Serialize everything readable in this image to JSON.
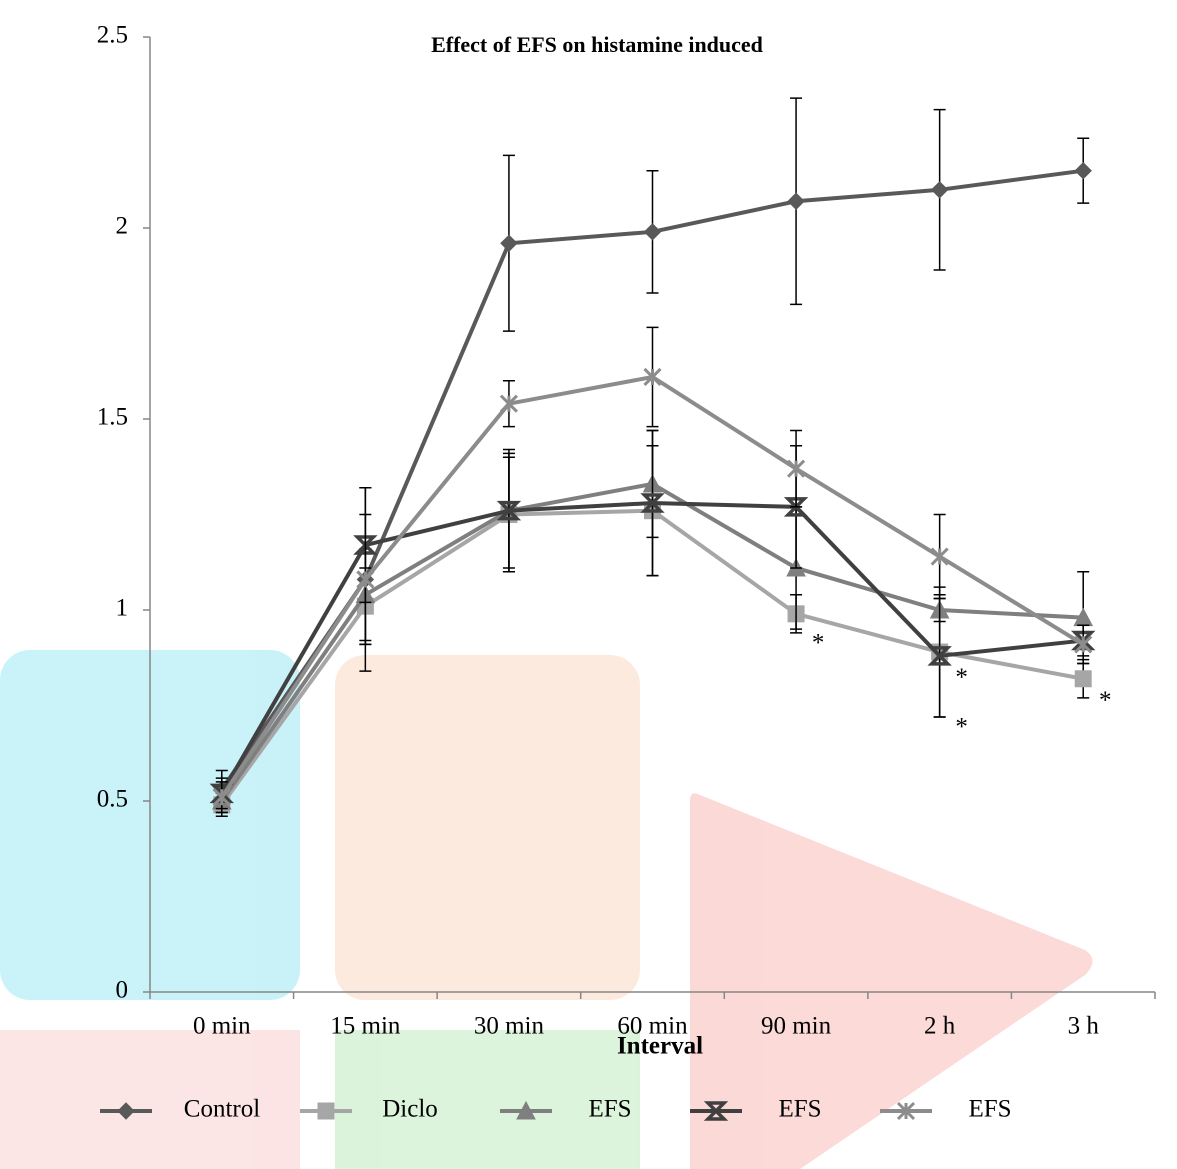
{
  "chart_data": {
    "type": "line",
    "title": "Effect of EFS on histamine induced",
    "x_label": "Interval",
    "categories": [
      "0 min",
      "15 min",
      "30 min",
      "60 min",
      "90 min",
      "2 h",
      "3 h"
    ],
    "series": [
      {
        "name": "Control",
        "color": "#595959",
        "marker": "diamond",
        "values": [
          0.53,
          1.08,
          1.96,
          1.99,
          2.07,
          2.1,
          2.15
        ],
        "errors": [
          0.05,
          0.24,
          0.23,
          0.16,
          0.27,
          0.21,
          0.085
        ]
      },
      {
        "name": "Diclo",
        "color": "#a6a6a6",
        "marker": "square",
        "values": [
          0.49,
          1.01,
          1.25,
          1.26,
          0.99,
          0.89,
          0.82
        ],
        "errors": [
          0.03,
          0.1,
          0.15,
          0.17,
          0.05,
          0.17,
          0.05
        ]
      },
      {
        "name": "EFS",
        "color": "#7f7f7f",
        "marker": "triangle",
        "values": [
          0.5,
          1.04,
          1.26,
          1.33,
          1.11,
          1.0,
          0.98
        ],
        "errors": [
          0.03,
          0.12,
          0.15,
          0.14,
          0.16,
          0.03,
          0.12
        ]
      },
      {
        "name": "EFS",
        "color": "#404040",
        "marker": "hourglass",
        "values": [
          0.52,
          1.17,
          1.26,
          1.28,
          1.27,
          0.88,
          0.92
        ],
        "errors": [
          0.04,
          0.15,
          0.16,
          0.19,
          0.16,
          0.16,
          0.04
        ]
      },
      {
        "name": "EFS",
        "color": "#8c8c8c",
        "marker": "star",
        "values": [
          0.51,
          1.08,
          1.54,
          1.61,
          1.37,
          1.14,
          0.91
        ],
        "errors": [
          0.04,
          0.17,
          0.06,
          0.13,
          0.1,
          0.11,
          0.05
        ]
      }
    ],
    "annotations": [
      {
        "text": "*",
        "category": 4,
        "y": 0.93
      },
      {
        "text": "*",
        "category": 5,
        "y": 0.84
      },
      {
        "text": "*",
        "category": 5,
        "y": 0.71
      },
      {
        "text": "*",
        "category": 6,
        "y": 0.78
      }
    ],
    "ylim": [
      0,
      2.5
    ],
    "yticks": [
      0,
      0.5,
      1,
      1.5,
      2,
      2.5
    ],
    "legend": "bottom"
  }
}
